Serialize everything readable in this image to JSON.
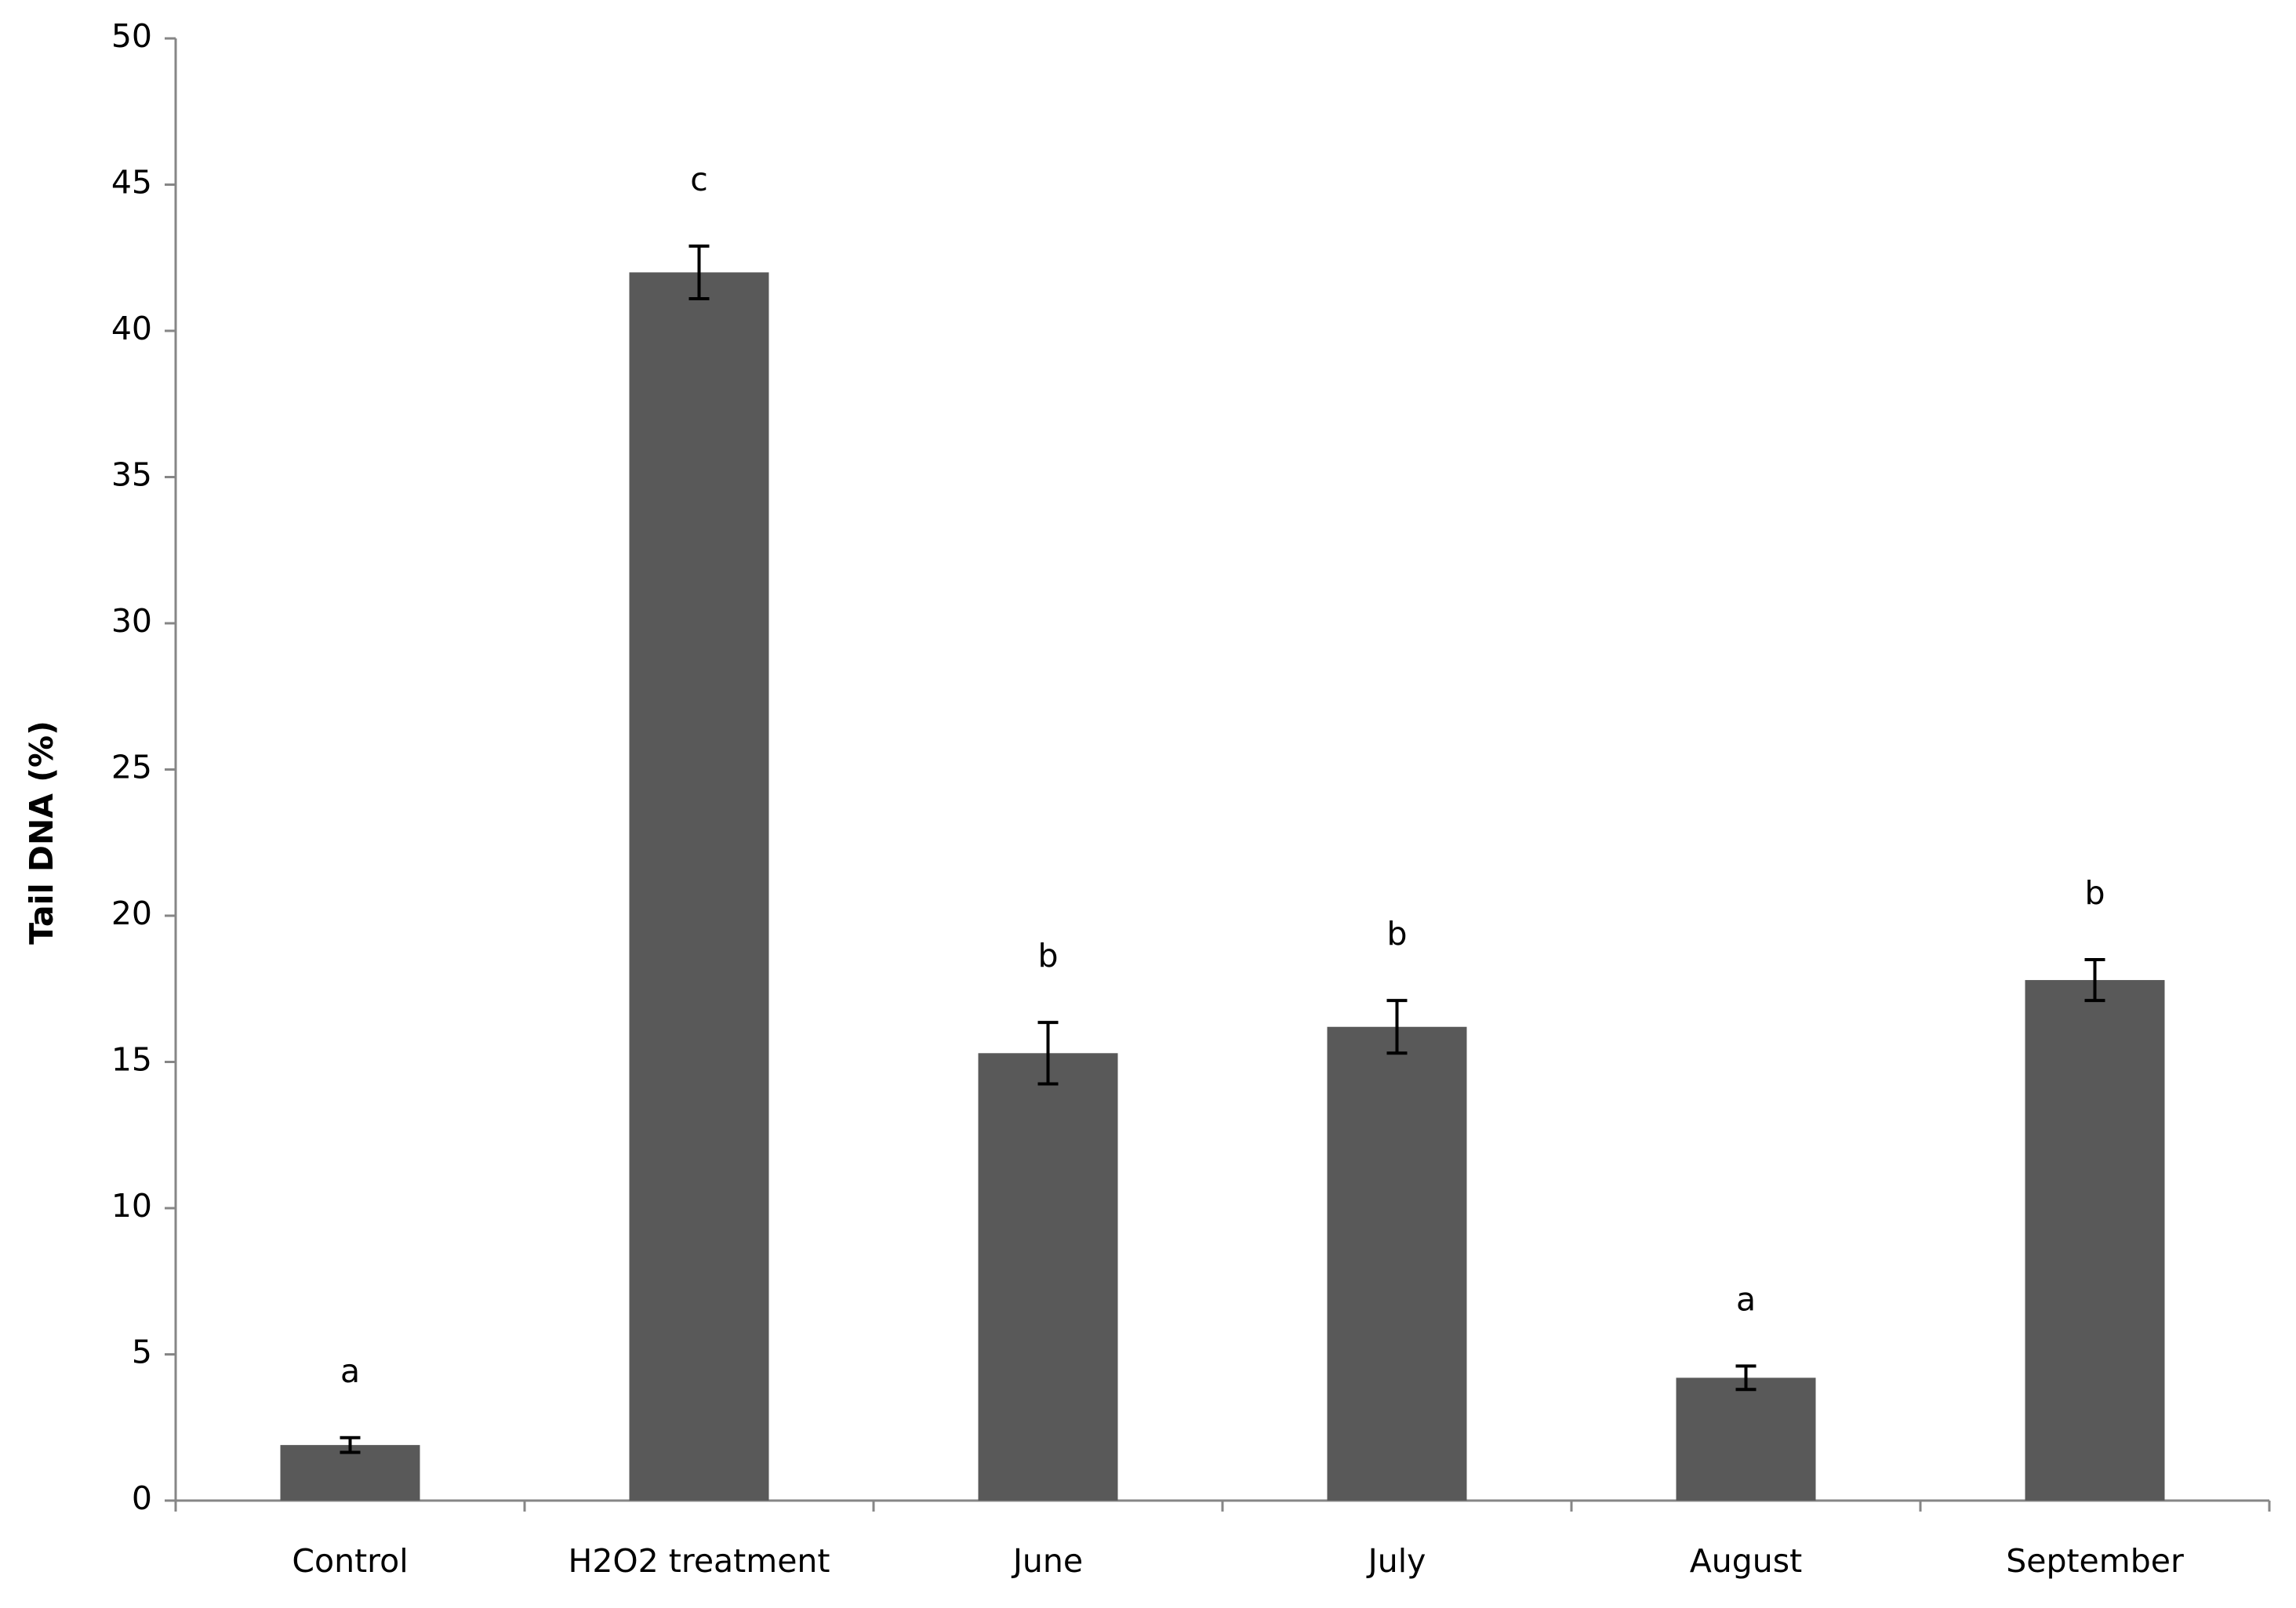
{
  "chart_data": {
    "type": "bar",
    "y_label": "Tail DNA (%)",
    "categories": [
      "Control",
      "H2O2 treatment",
      "June",
      "July",
      "August",
      "September"
    ],
    "values": [
      1.9,
      42.0,
      15.3,
      16.2,
      4.2,
      17.8
    ],
    "errors": [
      0.25,
      0.9,
      1.05,
      0.9,
      0.4,
      0.7
    ],
    "annotations": [
      "a",
      "c",
      "b",
      "b",
      "a",
      "b"
    ],
    "color": "#595959",
    "ylim": [
      0,
      50
    ],
    "yticks": [
      0,
      5,
      10,
      15,
      20,
      25,
      30,
      35,
      40,
      45,
      50
    ],
    "grid": false
  }
}
